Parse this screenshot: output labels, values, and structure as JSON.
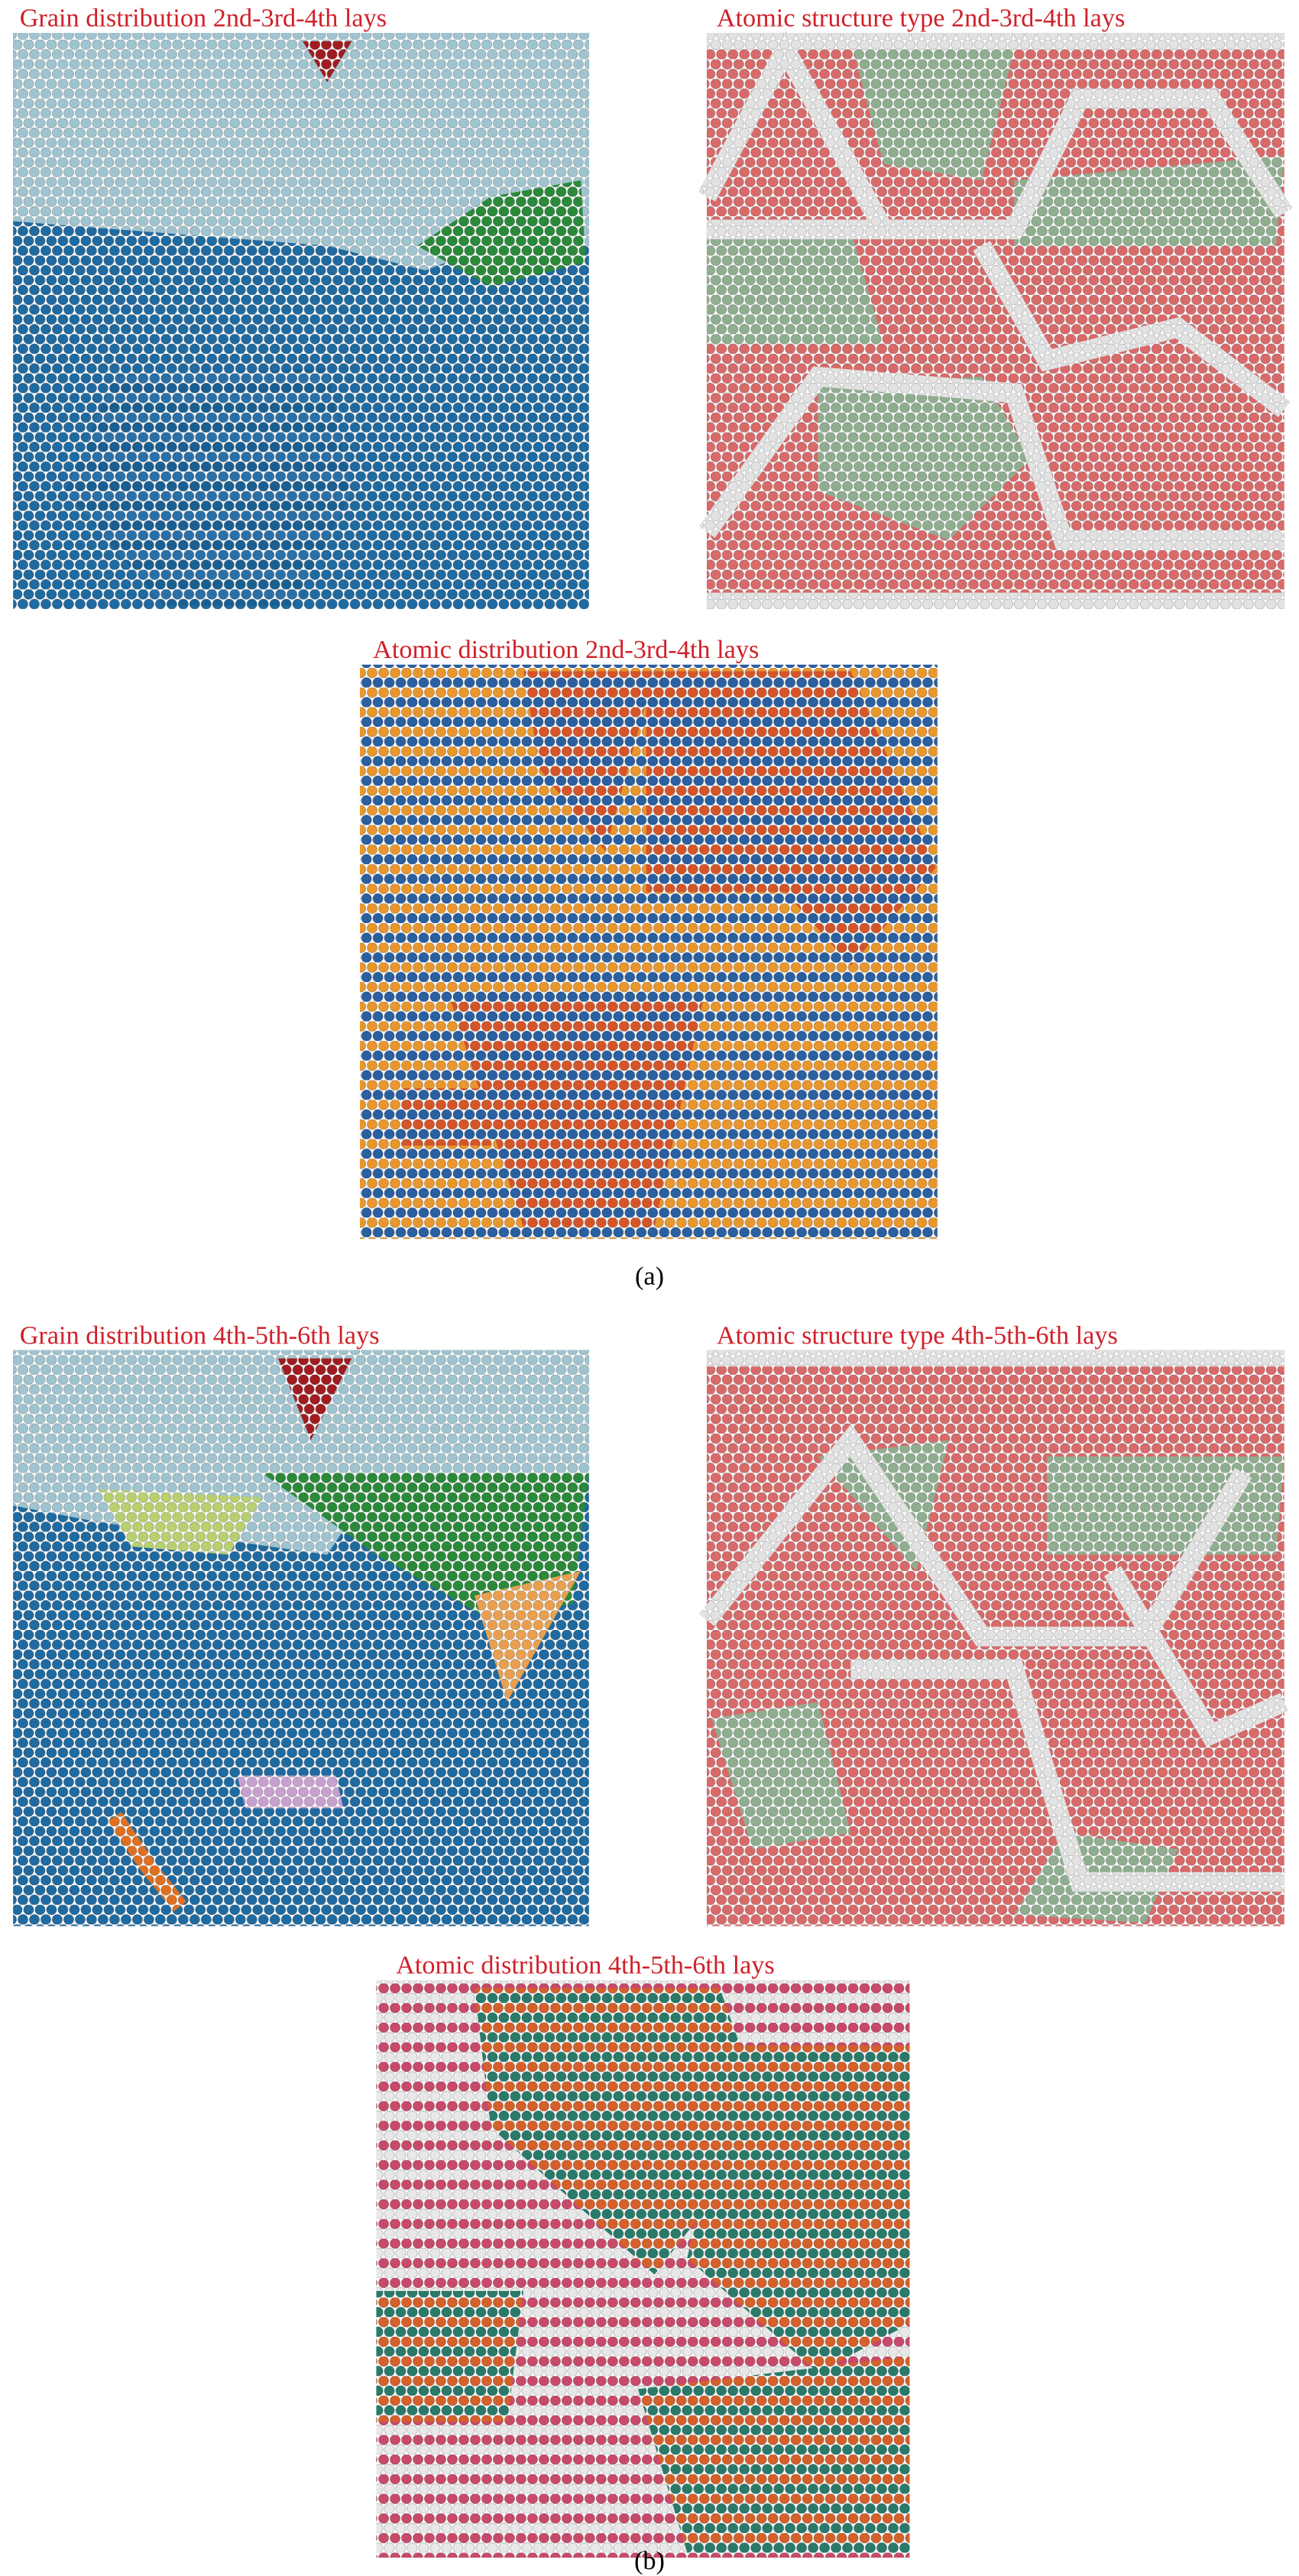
{
  "figure": {
    "panels": [
      {
        "title": "Grain distribution 2nd-3rd-4th lays"
      },
      {
        "title": "Atomic structure type 2nd-3rd-4th lays"
      },
      {
        "title": "Atomic distribution 2nd-3rd-4th lays"
      },
      {
        "title": "Grain distribution 4th-5th-6th lays"
      },
      {
        "title": "Atomic structure type 4th-5th-6th lays"
      },
      {
        "title": "Atomic distribution 4th-5th-6th lays"
      }
    ],
    "labels": [
      "(a)",
      "(b)"
    ]
  }
}
